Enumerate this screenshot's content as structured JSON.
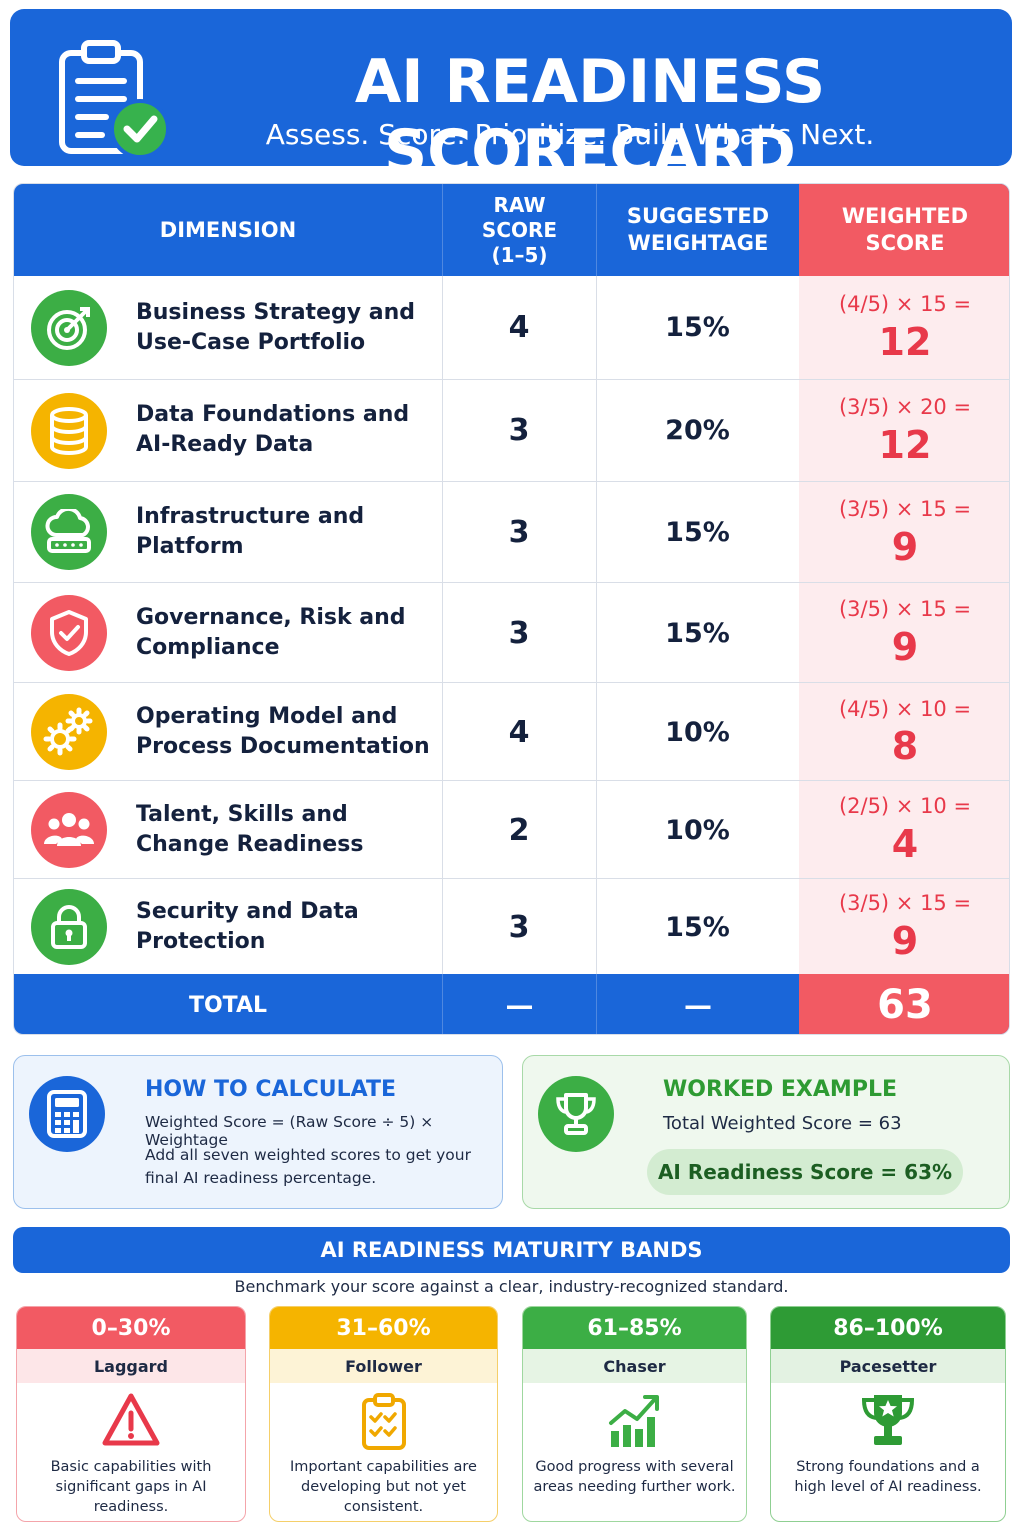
{
  "header": {
    "title": "AI READINESS SCORECARD",
    "subtitle": "Assess. Score. Prioritize. Build What’s Next.",
    "icon": "clipboard-check-icon"
  },
  "table": {
    "headers": {
      "dimension": "DIMENSION",
      "raw_l1": "RAW",
      "raw_l2": "SCORE",
      "raw_l3": "(1–5)",
      "weight_l1": "SUGGESTED",
      "weight_l2": "WEIGHTAGE",
      "weighted_l1": "WEIGHTED",
      "weighted_l2": "SCORE"
    },
    "rows": [
      {
        "l1": "Business Strategy and",
        "l2": "Use-Case Portfolio",
        "raw": "4",
        "weight": "15%",
        "formula": "(4/5) × 15 =",
        "score": "12",
        "icon": "target-icon",
        "color": "#3cae45"
      },
      {
        "l1": "Data Foundations and",
        "l2": "AI-Ready Data",
        "raw": "3",
        "weight": "20%",
        "formula": "(3/5) × 20 =",
        "score": "12",
        "icon": "database-icon",
        "color": "#f5b400"
      },
      {
        "l1": "Infrastructure and",
        "l2": "Platform",
        "raw": "3",
        "weight": "15%",
        "formula": "(3/5) × 15 =",
        "score": "9",
        "icon": "cloud-server-icon",
        "color": "#3cae45"
      },
      {
        "l1": "Governance, Risk and",
        "l2": "Compliance",
        "raw": "3",
        "weight": "15%",
        "formula": "(3/5) × 15 =",
        "score": "9",
        "icon": "shield-check-icon",
        "color": "#f25a63"
      },
      {
        "l1": "Operating Model and",
        "l2": "Process Documentation",
        "raw": "4",
        "weight": "10%",
        "formula": "(4/5) × 10 =",
        "score": "8",
        "icon": "gears-icon",
        "color": "#f5b400"
      },
      {
        "l1": "Talent, Skills and",
        "l2": "Change Readiness",
        "raw": "2",
        "weight": "10%",
        "formula": "(2/5) × 10 =",
        "score": "4",
        "icon": "people-icon",
        "color": "#f25a63"
      },
      {
        "l1": "Security and Data",
        "l2": "Protection",
        "raw": "3",
        "weight": "15%",
        "formula": "(3/5) × 15 =",
        "score": "9",
        "icon": "lock-icon",
        "color": "#3cae45"
      }
    ],
    "total": {
      "label": "TOTAL",
      "raw": "—",
      "weight": "—",
      "score": "63"
    }
  },
  "how_to": {
    "title": "HOW TO CALCULATE",
    "formula": "Weighted Score = (Raw Score ÷ 5) × Weightage",
    "note": "Add all seven weighted scores to get your final AI readiness percentage.",
    "icon": "calculator-icon"
  },
  "example": {
    "title": "WORKED EXAMPLE",
    "line": "Total Weighted Score = 63",
    "result": "AI Readiness Score = 63%",
    "icon": "trophy-icon"
  },
  "bands": {
    "title": "AI READINESS MATURITY BANDS",
    "subtitle": "Benchmark your score against a clear, industry-recognized standard.",
    "items": [
      {
        "range": "0–30%",
        "name": "Laggard",
        "desc": "Basic capabilities with significant gaps in AI readiness.",
        "icon": "warning-icon"
      },
      {
        "range": "31–60%",
        "name": "Follower",
        "desc": "Important capabilities are developing but not yet consistent.",
        "icon": "checklist-icon"
      },
      {
        "range": "61–85%",
        "name": "Chaser",
        "desc": "Good progress with several areas needing further work.",
        "icon": "growth-chart-icon"
      },
      {
        "range": "86–100%",
        "name": "Pacesetter",
        "desc": "Strong foundations and a high level of AI readiness.",
        "icon": "trophy-star-icon"
      }
    ]
  }
}
